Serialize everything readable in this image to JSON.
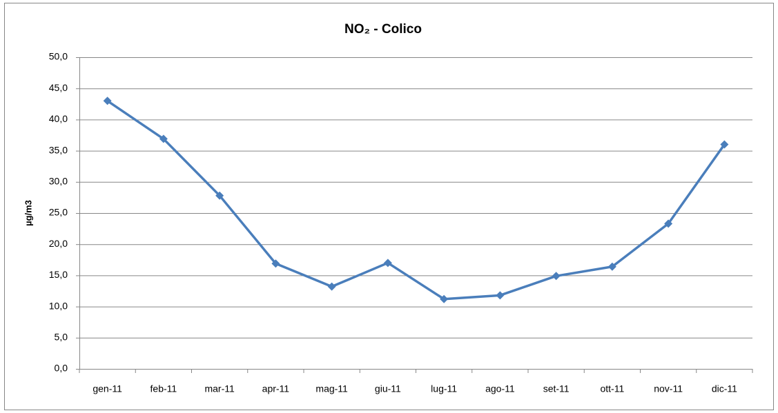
{
  "chart_data": {
    "type": "line",
    "title": "NO₂ - Colico",
    "y_label": "µg/m3",
    "categories": [
      "gen-11",
      "feb-11",
      "mar-11",
      "apr-11",
      "mag-11",
      "giu-11",
      "lug-11",
      "ago-11",
      "set-11",
      "ott-11",
      "nov-11",
      "dic-11"
    ],
    "values": [
      43.0,
      36.9,
      27.8,
      16.9,
      13.2,
      17.0,
      11.2,
      11.8,
      14.9,
      16.4,
      23.3,
      36.0
    ],
    "color": "#4a7ebb",
    "ylim": [
      0,
      50
    ],
    "yticks": [
      {
        "value": 0,
        "label": "0,0"
      },
      {
        "value": 5,
        "label": "5,0"
      },
      {
        "value": 10,
        "label": "10,0"
      },
      {
        "value": 15,
        "label": "15,0"
      },
      {
        "value": 20,
        "label": "20,0"
      },
      {
        "value": 25,
        "label": "25,0"
      },
      {
        "value": 30,
        "label": "30,0"
      },
      {
        "value": 35,
        "label": "35,0"
      },
      {
        "value": 40,
        "label": "40,0"
      },
      {
        "value": 45,
        "label": "45,0"
      },
      {
        "value": 50,
        "label": "50,0"
      }
    ],
    "grid": true
  }
}
